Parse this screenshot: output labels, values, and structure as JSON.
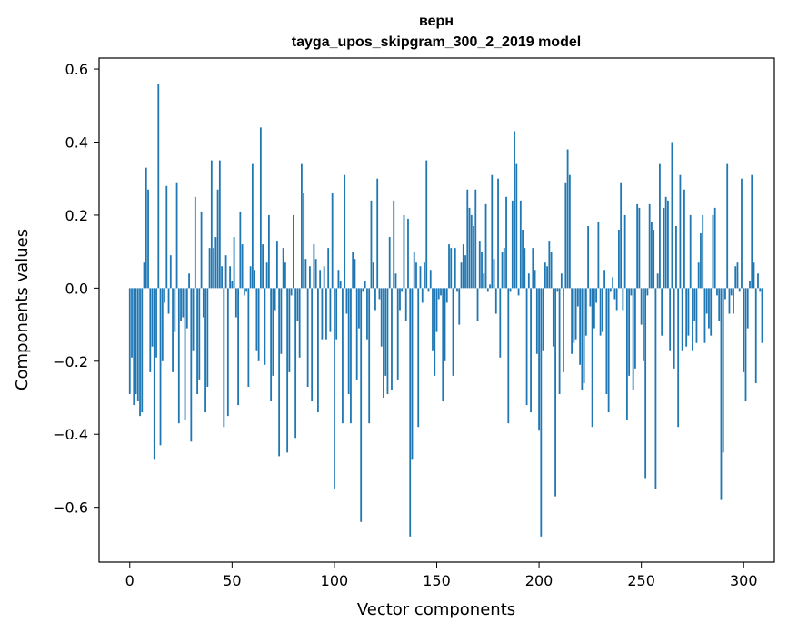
{
  "chart_data": {
    "type": "bar",
    "title": "верн",
    "subtitle": "tayga_upos_skipgram_300_2_2019 model",
    "xlabel": "Vector components",
    "ylabel": "Components values",
    "xlim": [
      -15,
      315
    ],
    "ylim": [
      -0.75,
      0.63
    ],
    "xticks": [
      0,
      50,
      100,
      150,
      200,
      250,
      300
    ],
    "yticks": [
      -0.6,
      -0.4,
      -0.2,
      0.0,
      0.2,
      0.4,
      0.6
    ],
    "ytick_labels": [
      "−0.6",
      "−0.4",
      "−0.2",
      "0.0",
      "0.2",
      "0.4",
      "0.6"
    ],
    "bar_color": "#1f77b4",
    "values": [
      -0.29,
      -0.19,
      -0.32,
      -0.29,
      -0.31,
      -0.35,
      -0.34,
      0.07,
      0.33,
      0.27,
      -0.23,
      -0.16,
      -0.47,
      -0.19,
      0.56,
      -0.43,
      -0.2,
      -0.04,
      0.28,
      -0.07,
      0.09,
      -0.23,
      -0.12,
      0.29,
      -0.37,
      -0.09,
      -0.08,
      -0.36,
      -0.11,
      0.04,
      -0.42,
      -0.17,
      0.25,
      -0.29,
      -0.25,
      0.21,
      -0.08,
      -0.34,
      -0.27,
      0.11,
      0.35,
      0.11,
      0.14,
      0.27,
      0.35,
      0.06,
      -0.38,
      0.09,
      -0.35,
      0.06,
      0.02,
      0.14,
      -0.08,
      -0.32,
      0.21,
      0.12,
      -0.02,
      -0.01,
      -0.27,
      0.06,
      0.34,
      0.05,
      -0.17,
      -0.2,
      0.44,
      0.12,
      -0.21,
      0.07,
      0.2,
      -0.31,
      -0.24,
      -0.06,
      0.13,
      -0.46,
      -0.18,
      0.11,
      0.07,
      -0.45,
      -0.23,
      -0.02,
      0.2,
      -0.41,
      -0.09,
      -0.19,
      0.34,
      0.26,
      0.08,
      -0.27,
      0.06,
      -0.31,
      0.12,
      0.08,
      -0.34,
      0.05,
      -0.14,
      0.06,
      -0.14,
      0.11,
      -0.12,
      0.26,
      -0.55,
      -0.14,
      0.05,
      0.02,
      -0.37,
      0.31,
      -0.07,
      -0.29,
      -0.37,
      0.1,
      0.08,
      -0.25,
      -0.11,
      -0.64,
      -0.01,
      0.02,
      -0.14,
      -0.37,
      0.24,
      0.07,
      -0.06,
      0.3,
      -0.03,
      -0.16,
      -0.3,
      -0.24,
      -0.29,
      0.14,
      -0.28,
      0.24,
      0.04,
      -0.25,
      -0.06,
      -0.01,
      0.2,
      -0.09,
      0.19,
      -0.68,
      -0.47,
      0.1,
      0.07,
      -0.38,
      0.06,
      -0.04,
      0.07,
      0.35,
      -0.01,
      0.05,
      -0.17,
      -0.24,
      -0.12,
      -0.03,
      -0.02,
      -0.31,
      -0.2,
      -0.04,
      0.12,
      0.11,
      -0.24,
      0.11,
      -0.01,
      -0.1,
      0.07,
      0.12,
      0.09,
      0.27,
      0.22,
      0.2,
      0.17,
      0.27,
      -0.09,
      0.13,
      0.1,
      0.04,
      0.23,
      -0.01,
      0.01,
      0.31,
      0.08,
      -0.07,
      0.3,
      -0.19,
      0.1,
      0.11,
      0.25,
      -0.37,
      -0.01,
      0.24,
      0.43,
      0.34,
      -0.02,
      0.24,
      0.16,
      0.11,
      -0.32,
      0.04,
      -0.34,
      0.11,
      0.05,
      -0.18,
      -0.39,
      -0.68,
      -0.17,
      0.07,
      0.06,
      0.13,
      0.1,
      -0.16,
      -0.57,
      -0.01,
      -0.29,
      0.04,
      -0.23,
      0.29,
      0.38,
      0.31,
      -0.18,
      -0.15,
      -0.14,
      -0.05,
      -0.21,
      -0.28,
      -0.26,
      -0.13,
      0.17,
      -0.05,
      -0.38,
      -0.11,
      -0.04,
      0.18,
      -0.13,
      -0.12,
      0.05,
      -0.29,
      -0.34,
      -0.01,
      0.03,
      -0.03,
      -0.06,
      0.16,
      0.29,
      -0.06,
      0.2,
      -0.36,
      -0.24,
      -0.02,
      -0.28,
      -0.22,
      0.23,
      0.22,
      -0.1,
      -0.2,
      -0.52,
      -0.02,
      0.23,
      0.18,
      0.16,
      -0.55,
      0.04,
      0.34,
      -0.13,
      0.22,
      0.25,
      0.24,
      -0.17,
      0.4,
      -0.22,
      0.17,
      -0.38,
      0.31,
      -0.17,
      0.27,
      -0.16,
      -0.13,
      0.2,
      -0.17,
      -0.09,
      -0.15,
      0.07,
      0.15,
      0.2,
      -0.15,
      -0.07,
      -0.11,
      -0.13,
      0.2,
      0.22,
      -0.02,
      -0.09,
      -0.58,
      -0.45,
      -0.03,
      0.34,
      -0.07,
      -0.02,
      -0.07,
      0.06,
      0.07,
      -0.01,
      0.3,
      -0.23,
      -0.31,
      -0.11,
      0.02,
      0.31,
      0.07,
      -0.26,
      0.04,
      -0.01,
      -0.15
    ]
  }
}
